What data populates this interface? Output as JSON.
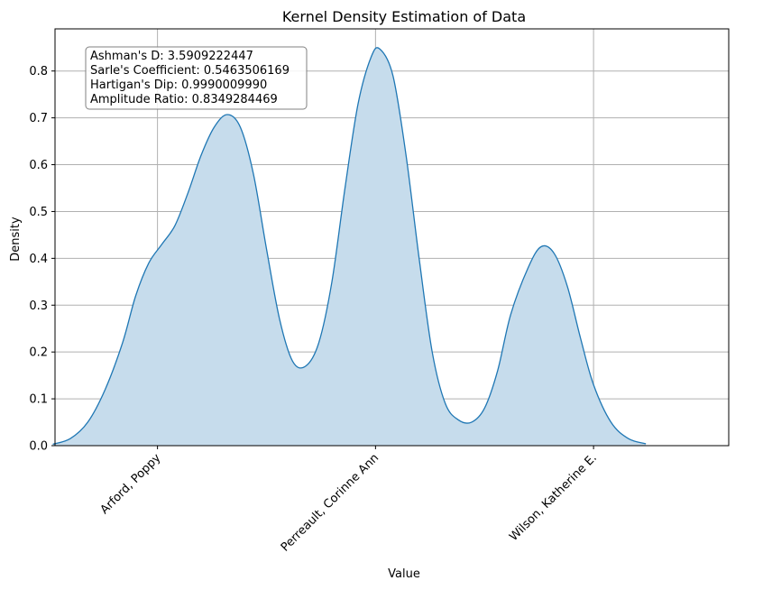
{
  "chart_data": {
    "type": "area",
    "title": "Kernel Density Estimation of Data",
    "xlabel": "Value",
    "ylabel": "Density",
    "xlim": [
      -0.47,
      2.62
    ],
    "ylim": [
      0,
      0.89
    ],
    "x_ticks": [
      {
        "value": 0,
        "label": "Arford, Poppy"
      },
      {
        "value": 1,
        "label": "Perreault, Corinne Ann"
      },
      {
        "value": 2,
        "label": "Wilson, Katherine E."
      }
    ],
    "y_ticks": [
      {
        "value": 0.0,
        "label": "0.0"
      },
      {
        "value": 0.1,
        "label": "0.1"
      },
      {
        "value": 0.2,
        "label": "0.2"
      },
      {
        "value": 0.3,
        "label": "0.3"
      },
      {
        "value": 0.4,
        "label": "0.4"
      },
      {
        "value": 0.5,
        "label": "0.5"
      },
      {
        "value": 0.6,
        "label": "0.6"
      },
      {
        "value": 0.7,
        "label": "0.7"
      },
      {
        "value": 0.8,
        "label": "0.8"
      }
    ],
    "grid": true,
    "series": [
      {
        "color": "#1f77b4",
        "fill_color": "#c6dcec",
        "points": [
          [
            -0.48,
            0.003
          ],
          [
            -0.4,
            0.015
          ],
          [
            -0.32,
            0.05
          ],
          [
            -0.24,
            0.12
          ],
          [
            -0.16,
            0.22
          ],
          [
            -0.1,
            0.32
          ],
          [
            -0.04,
            0.39
          ],
          [
            0.02,
            0.43
          ],
          [
            0.08,
            0.47
          ],
          [
            0.14,
            0.54
          ],
          [
            0.2,
            0.62
          ],
          [
            0.26,
            0.68
          ],
          [
            0.32,
            0.707
          ],
          [
            0.38,
            0.68
          ],
          [
            0.44,
            0.58
          ],
          [
            0.5,
            0.42
          ],
          [
            0.56,
            0.27
          ],
          [
            0.62,
            0.18
          ],
          [
            0.68,
            0.17
          ],
          [
            0.74,
            0.22
          ],
          [
            0.8,
            0.35
          ],
          [
            0.86,
            0.55
          ],
          [
            0.92,
            0.73
          ],
          [
            0.98,
            0.83
          ],
          [
            1.02,
            0.847
          ],
          [
            1.08,
            0.79
          ],
          [
            1.14,
            0.62
          ],
          [
            1.2,
            0.4
          ],
          [
            1.26,
            0.2
          ],
          [
            1.32,
            0.09
          ],
          [
            1.38,
            0.055
          ],
          [
            1.44,
            0.05
          ],
          [
            1.5,
            0.08
          ],
          [
            1.56,
            0.16
          ],
          [
            1.62,
            0.28
          ],
          [
            1.7,
            0.38
          ],
          [
            1.76,
            0.425
          ],
          [
            1.82,
            0.41
          ],
          [
            1.88,
            0.34
          ],
          [
            1.94,
            0.23
          ],
          [
            2.0,
            0.13
          ],
          [
            2.08,
            0.05
          ],
          [
            2.16,
            0.015
          ],
          [
            2.24,
            0.004
          ]
        ]
      }
    ],
    "annotation_box": {
      "placement": "top-left",
      "lines": [
        "Ashman's D: 3.5909222447",
        "Sarle's Coefficient: 0.5463506169",
        "Hartigan's Dip: 0.9990009990",
        "Amplitude Ratio: 0.8349284469"
      ]
    }
  }
}
